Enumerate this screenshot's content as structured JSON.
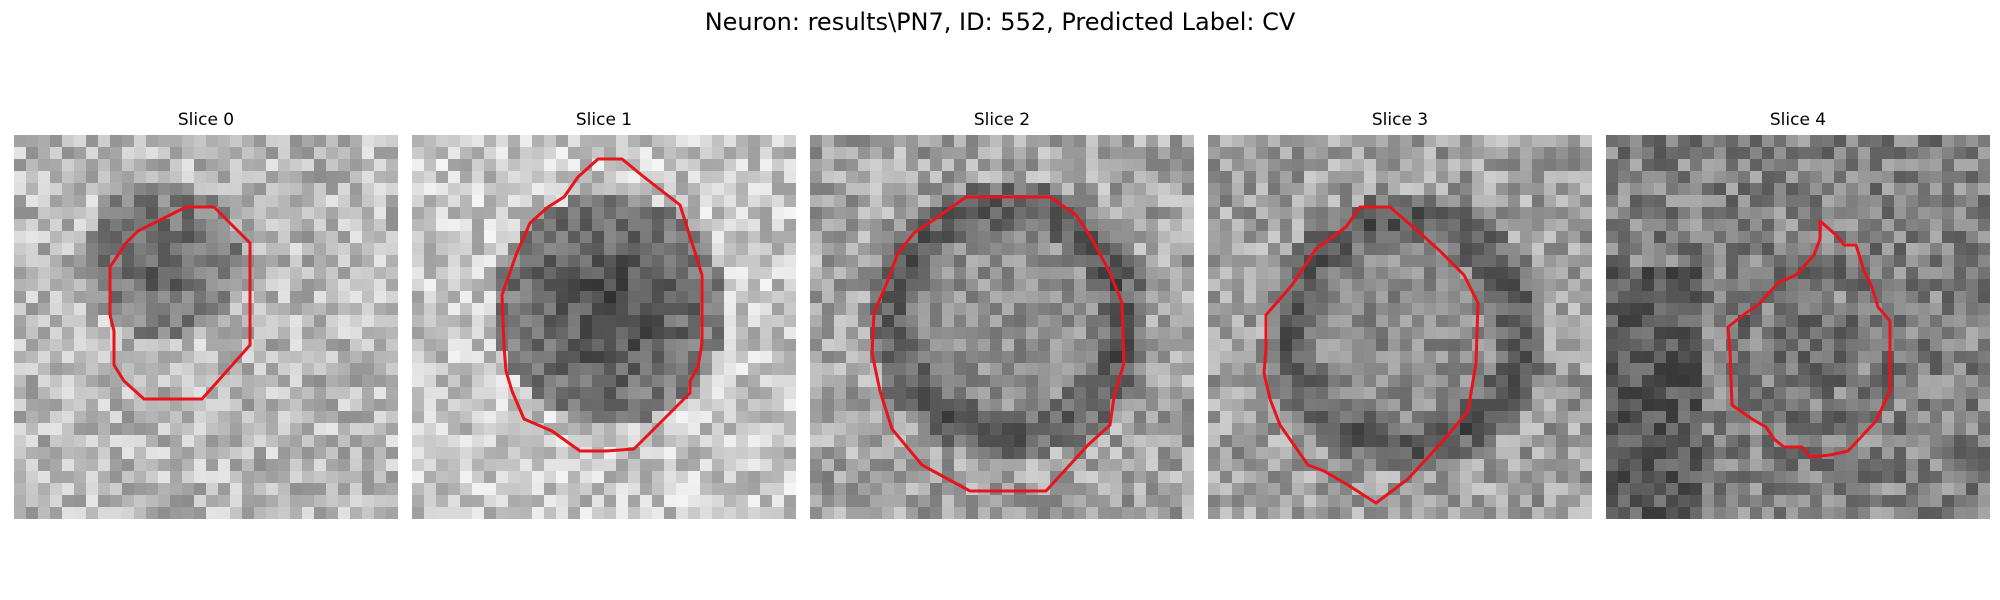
{
  "figure": {
    "title": "Neuron: results\\PN7, ID: 552, Predicted Label: CV"
  },
  "panels": [
    {
      "label": "Slice 0"
    },
    {
      "label": "Slice 1"
    },
    {
      "label": "Slice 2"
    },
    {
      "label": "Slice 3"
    },
    {
      "label": "Slice 4"
    }
  ],
  "style": {
    "contour_color": "#e8141c",
    "colormap": "grayscale"
  }
}
